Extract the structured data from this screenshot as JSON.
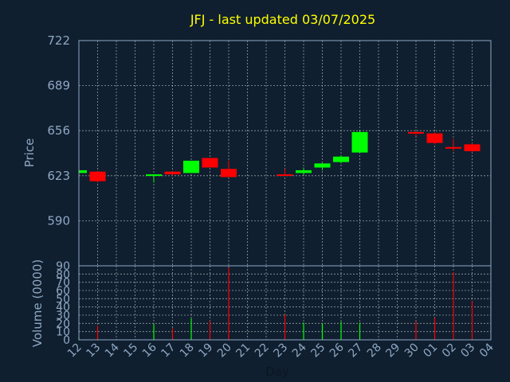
{
  "chart_data": [
    {
      "type": "candlestick",
      "title": "JFJ - last updated 03/07/2025",
      "ylabel": "Price",
      "ylim": [
        557,
        722
      ],
      "yticks": [
        722,
        689,
        656,
        623,
        590
      ],
      "categories": [
        "12",
        "13",
        "14",
        "15",
        "16",
        "17",
        "18",
        "19",
        "20",
        "21",
        "22",
        "23",
        "24",
        "25",
        "26",
        "27",
        "28",
        "29",
        "30",
        "01",
        "02",
        "03",
        "04"
      ],
      "ohlc": [
        {
          "day": "12",
          "open": 625,
          "high": 627,
          "low": 624,
          "close": 627
        },
        {
          "day": "13",
          "open": 626,
          "high": 626,
          "low": 618,
          "close": 619
        },
        {
          "day": "16",
          "open": 623,
          "high": 624,
          "low": 618,
          "close": 624
        },
        {
          "day": "17",
          "open": 626,
          "high": 626,
          "low": 623,
          "close": 624
        },
        {
          "day": "18",
          "open": 625,
          "high": 634,
          "low": 625,
          "close": 634
        },
        {
          "day": "19",
          "open": 636,
          "high": 636,
          "low": 629,
          "close": 629
        },
        {
          "day": "20",
          "open": 628,
          "high": 634,
          "low": 622,
          "close": 622
        },
        {
          "day": "23",
          "open": 624,
          "high": 628,
          "low": 623,
          "close": 623
        },
        {
          "day": "24",
          "open": 625,
          "high": 629,
          "low": 624,
          "close": 627
        },
        {
          "day": "25",
          "open": 629,
          "high": 632,
          "low": 627,
          "close": 632
        },
        {
          "day": "26",
          "open": 633,
          "high": 638,
          "low": 632,
          "close": 637
        },
        {
          "day": "27",
          "open": 640,
          "high": 656,
          "low": 640,
          "close": 655
        },
        {
          "day": "30",
          "open": 655,
          "high": 656,
          "low": 652,
          "close": 654
        },
        {
          "day": "01",
          "open": 654,
          "high": 655,
          "low": 646,
          "close": 647
        },
        {
          "day": "02",
          "open": 644,
          "high": 650,
          "low": 641,
          "close": 643
        },
        {
          "day": "03",
          "open": 646,
          "high": 647,
          "low": 640,
          "close": 641
        }
      ],
      "up_color": "#00ff00",
      "down_color": "#ff0000",
      "grid": true
    },
    {
      "type": "bar",
      "ylabel": "Volume (0000)",
      "xlabel": "Day",
      "ylim": [
        0,
        90
      ],
      "yticks": [
        0,
        10,
        20,
        30,
        40,
        50,
        60,
        70,
        80,
        90
      ],
      "categories": [
        "12",
        "13",
        "14",
        "15",
        "16",
        "17",
        "18",
        "19",
        "20",
        "21",
        "22",
        "23",
        "24",
        "25",
        "26",
        "27",
        "28",
        "29",
        "30",
        "01",
        "02",
        "03",
        "04"
      ],
      "volumes": [
        {
          "day": "12",
          "value": 3,
          "dir": "up"
        },
        {
          "day": "13",
          "value": 17,
          "dir": "down"
        },
        {
          "day": "16",
          "value": 19,
          "dir": "up"
        },
        {
          "day": "17",
          "value": 14,
          "dir": "down"
        },
        {
          "day": "18",
          "value": 26,
          "dir": "up"
        },
        {
          "day": "19",
          "value": 23,
          "dir": "down"
        },
        {
          "day": "20",
          "value": 88,
          "dir": "down"
        },
        {
          "day": "23",
          "value": 31,
          "dir": "down"
        },
        {
          "day": "24",
          "value": 21,
          "dir": "up"
        },
        {
          "day": "25",
          "value": 20,
          "dir": "up"
        },
        {
          "day": "26",
          "value": 22,
          "dir": "up"
        },
        {
          "day": "27",
          "value": 21,
          "dir": "up"
        },
        {
          "day": "30",
          "value": 22,
          "dir": "down"
        },
        {
          "day": "01",
          "value": 27,
          "dir": "down"
        },
        {
          "day": "02",
          "value": 82,
          "dir": "down"
        },
        {
          "day": "03",
          "value": 47,
          "dir": "down"
        }
      ],
      "up_color": "#00ff00",
      "down_color": "#ff0000",
      "grid": true
    }
  ],
  "colors": {
    "background": "#0f1f2f",
    "axis_text": "#8fa7c4",
    "title": "#ffff00",
    "grid": "#ffffff"
  }
}
